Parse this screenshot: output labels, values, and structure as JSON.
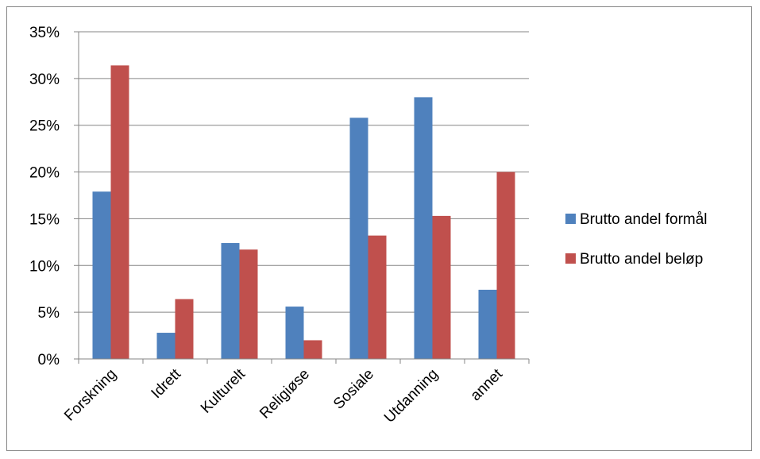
{
  "chart_data": {
    "type": "bar",
    "title": "",
    "xlabel": "",
    "ylabel": "",
    "ylim": [
      0,
      0.35
    ],
    "yticks": [
      0,
      0.05,
      0.1,
      0.15,
      0.2,
      0.25,
      0.3,
      0.35
    ],
    "ytick_labels": [
      "0%",
      "5%",
      "10%",
      "15%",
      "20%",
      "25%",
      "30%",
      "35%"
    ],
    "grid": true,
    "legend_position": "right",
    "categories": [
      "Forskning",
      "Idrett",
      "Kulturelt",
      "Religiøse",
      "Sosiale",
      "Utdanning",
      "annet"
    ],
    "series": [
      {
        "name": "Brutto andel formål",
        "color": "#4f81bd",
        "values": [
          0.179,
          0.028,
          0.124,
          0.056,
          0.258,
          0.28,
          0.074
        ]
      },
      {
        "name": "Brutto andel beløp",
        "color": "#c0504d",
        "values": [
          0.314,
          0.064,
          0.117,
          0.02,
          0.132,
          0.153,
          0.2
        ]
      }
    ]
  }
}
